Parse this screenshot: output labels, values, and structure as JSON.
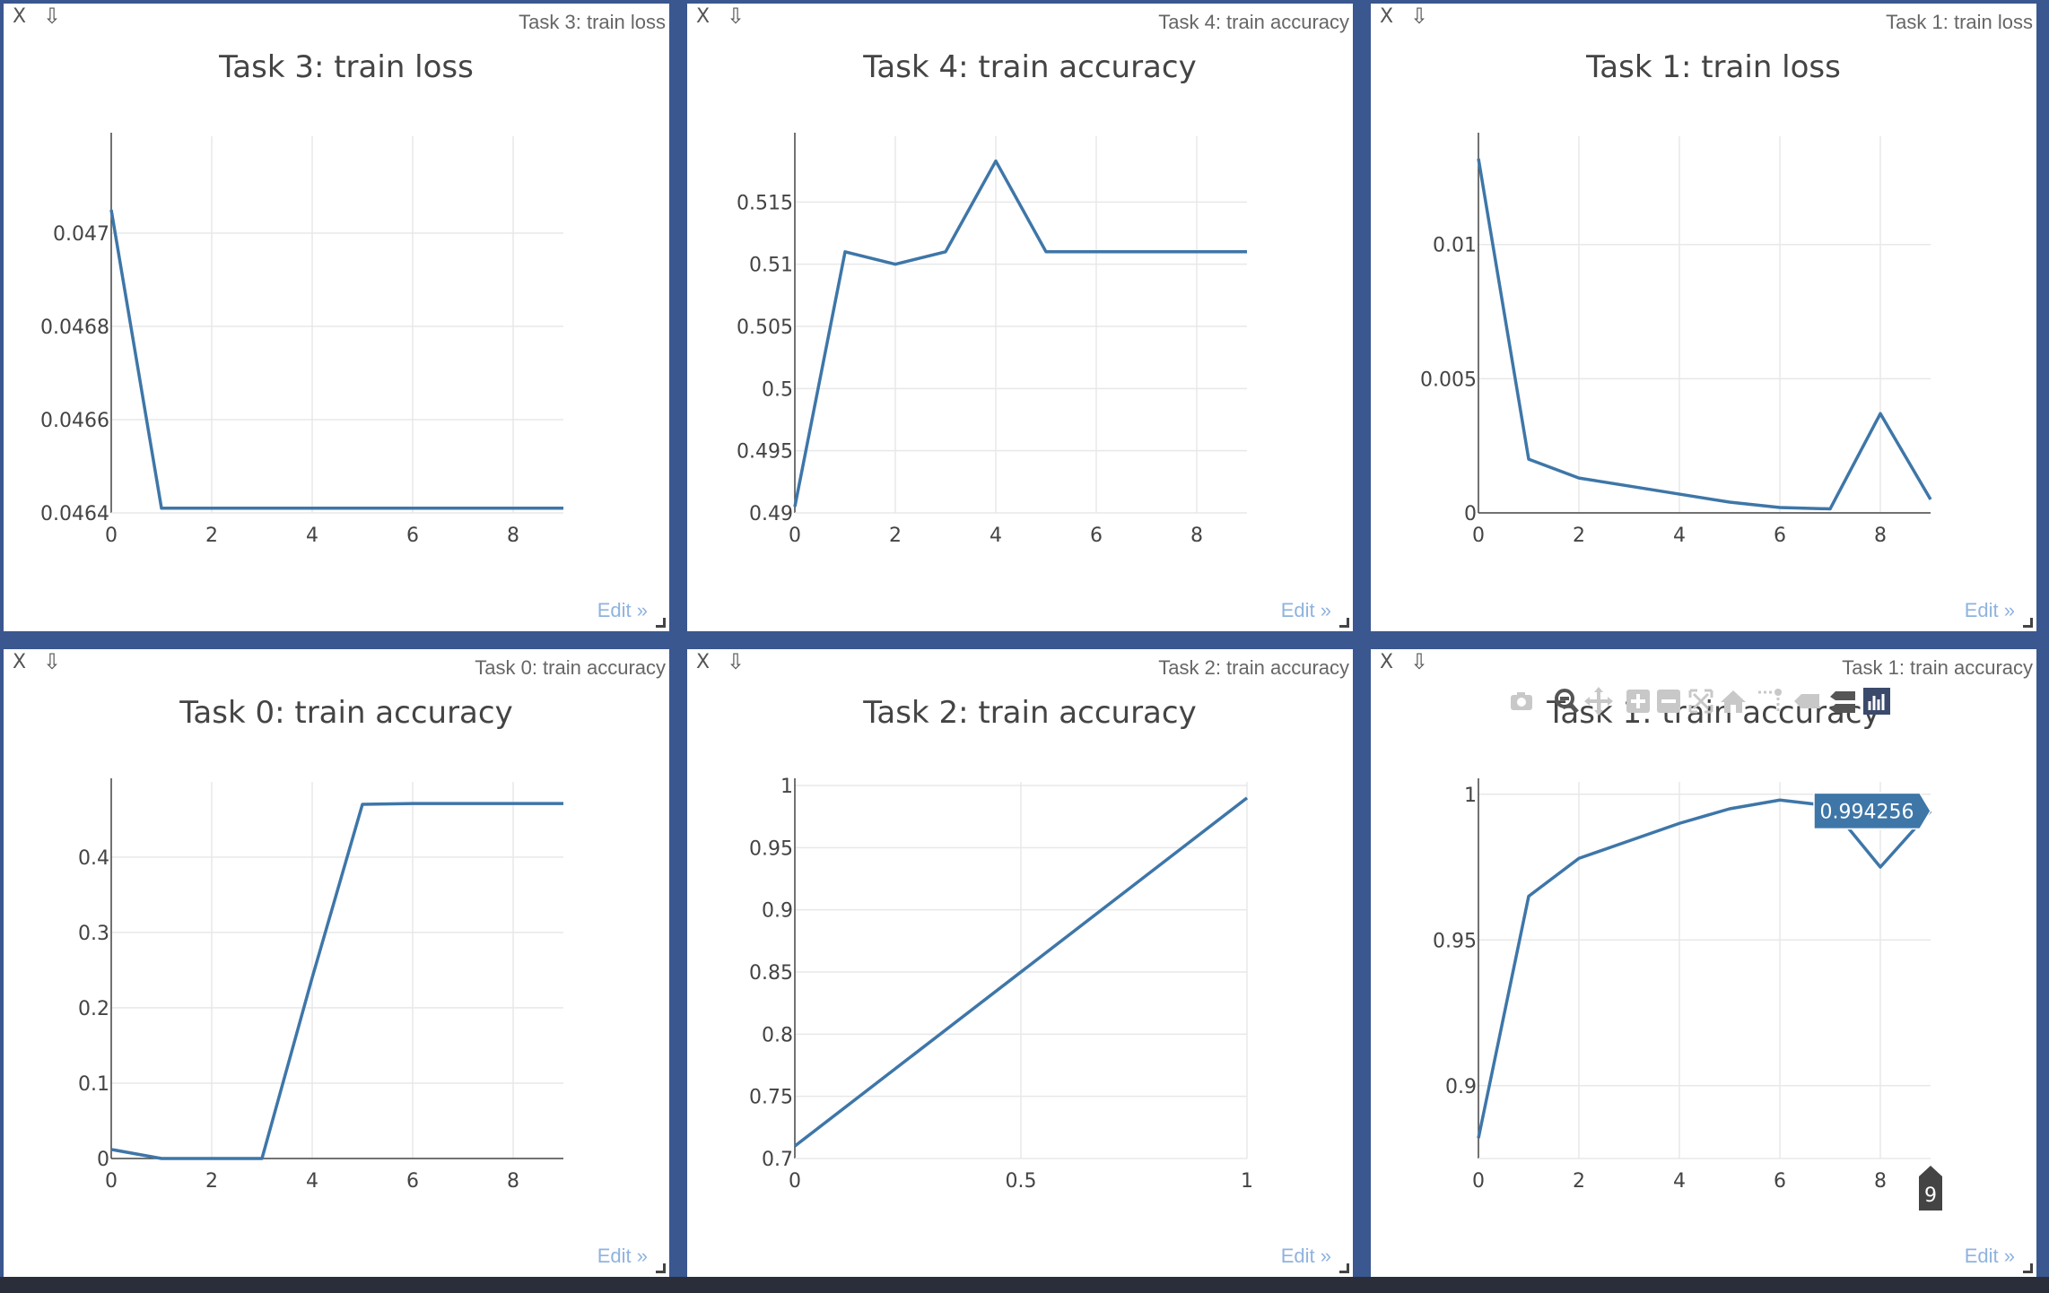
{
  "panes": [
    {
      "title": "Task 3: train loss",
      "edit": "Edit »"
    },
    {
      "title": "Task 4: train accuracy",
      "edit": "Edit »"
    },
    {
      "title": "Task 1: train loss",
      "edit": "Edit »"
    },
    {
      "title": "Task 0: train accuracy",
      "edit": "Edit »"
    },
    {
      "title": "Task 2: train accuracy",
      "edit": "Edit »"
    },
    {
      "title": "Task 1: train accuracy",
      "edit": "Edit »"
    }
  ],
  "icons": {
    "close": "X",
    "download": "⇩"
  },
  "colors": {
    "line": "#3e76a8",
    "background": "#3b5790",
    "hover_label": "#3e76a8"
  },
  "hover": {
    "value": "0.994256",
    "x_label": "9"
  },
  "chart_data": [
    {
      "type": "line",
      "title": "Task 3: train loss",
      "x": [
        0,
        1,
        2,
        3,
        4,
        5,
        6,
        7,
        8,
        9
      ],
      "values": [
        0.04705,
        0.04641,
        0.04641,
        0.04641,
        0.04641,
        0.04641,
        0.04641,
        0.04641,
        0.04641,
        0.04641
      ],
      "xlim": [
        0,
        9
      ],
      "ylim": [
        0.0464,
        0.0472
      ],
      "xticks": [
        "0",
        "2",
        "4",
        "6",
        "8"
      ],
      "xtick_values": [
        0,
        2,
        4,
        6,
        8
      ],
      "yticks": [
        "0.0464",
        "0.0466",
        "0.0468",
        "0.047"
      ],
      "ytick_values": [
        0.0464,
        0.0466,
        0.0468,
        0.047
      ],
      "grid": true
    },
    {
      "type": "line",
      "title": "Task 4: train accuracy",
      "x": [
        0,
        1,
        2,
        3,
        4,
        5,
        6,
        7,
        8,
        9
      ],
      "values": [
        0.4905,
        0.511,
        0.51,
        0.511,
        0.5183,
        0.511,
        0.511,
        0.511,
        0.511,
        0.511
      ],
      "xlim": [
        0,
        9
      ],
      "ylim": [
        0.49,
        0.52
      ],
      "xticks": [
        "0",
        "2",
        "4",
        "6",
        "8"
      ],
      "xtick_values": [
        0,
        2,
        4,
        6,
        8
      ],
      "yticks": [
        "0.49",
        "0.495",
        "0.5",
        "0.505",
        "0.51",
        "0.515"
      ],
      "ytick_values": [
        0.49,
        0.495,
        0.5,
        0.505,
        0.51,
        0.515
      ],
      "grid": true
    },
    {
      "type": "line",
      "title": "Task 1: train loss",
      "x": [
        0,
        1,
        2,
        3,
        4,
        5,
        6,
        7,
        8,
        9
      ],
      "values": [
        0.0132,
        0.002,
        0.0013,
        0.001,
        0.0007,
        0.0004,
        0.0002,
        0.00015,
        0.0037,
        0.0005
      ],
      "xlim": [
        0,
        9
      ],
      "ylim": [
        0,
        0.0139
      ],
      "xticks": [
        "0",
        "2",
        "4",
        "6",
        "8"
      ],
      "xtick_values": [
        0,
        2,
        4,
        6,
        8
      ],
      "yticks": [
        "0",
        "0.005",
        "0.01"
      ],
      "ytick_values": [
        0,
        0.005,
        0.01
      ],
      "grid": true
    },
    {
      "type": "line",
      "title": "Task 0: train accuracy",
      "x": [
        0,
        1,
        2,
        3,
        4,
        5,
        6,
        7,
        8,
        9
      ],
      "values": [
        0.012,
        0,
        0,
        0,
        0.24,
        0.47,
        0.471,
        0.471,
        0.471,
        0.471
      ],
      "xlim": [
        0,
        9
      ],
      "ylim": [
        0,
        0.495
      ],
      "xticks": [
        "0",
        "2",
        "4",
        "6",
        "8"
      ],
      "xtick_values": [
        0,
        2,
        4,
        6,
        8
      ],
      "yticks": [
        "0",
        "0.1",
        "0.2",
        "0.3",
        "0.4"
      ],
      "ytick_values": [
        0,
        0.1,
        0.2,
        0.3,
        0.4
      ],
      "grid": true
    },
    {
      "type": "line",
      "title": "Task 2: train accuracy",
      "x": [
        0,
        1
      ],
      "values": [
        0.71,
        0.99
      ],
      "xlim": [
        0,
        1
      ],
      "ylim": [
        0.7,
        1.0
      ],
      "xticks": [
        "0",
        "0.5",
        "1"
      ],
      "xtick_values": [
        0,
        0.5,
        1
      ],
      "yticks": [
        "0.7",
        "0.75",
        "0.8",
        "0.85",
        "0.9",
        "0.95",
        "1"
      ],
      "ytick_values": [
        0.7,
        0.75,
        0.8,
        0.85,
        0.9,
        0.95,
        1.0
      ],
      "grid": true
    },
    {
      "type": "line",
      "title": "Task 1: train accuracy",
      "x": [
        0,
        1,
        2,
        3,
        4,
        5,
        6,
        7,
        8,
        9
      ],
      "values": [
        0.882,
        0.965,
        0.978,
        0.984,
        0.99,
        0.995,
        0.998,
        0.996,
        0.975,
        0.994256
      ],
      "xlim": [
        0,
        9
      ],
      "ylim": [
        0.875,
        1.003
      ],
      "xticks": [
        "0",
        "2",
        "4",
        "6",
        "8"
      ],
      "xtick_values": [
        0,
        2,
        4,
        6,
        8
      ],
      "yticks": [
        "0.9",
        "0.95",
        "1"
      ],
      "ytick_values": [
        0.9,
        0.95,
        1.0
      ],
      "grid": true
    }
  ],
  "modebar": [
    "camera-icon",
    "zoom-icon",
    "pan-icon",
    "zoom-in-icon",
    "zoom-out-icon",
    "autoscale-icon",
    "home-icon",
    "spike-lines-icon",
    "hover-closest-icon",
    "hover-compare-icon",
    "plotly-logo-icon"
  ]
}
